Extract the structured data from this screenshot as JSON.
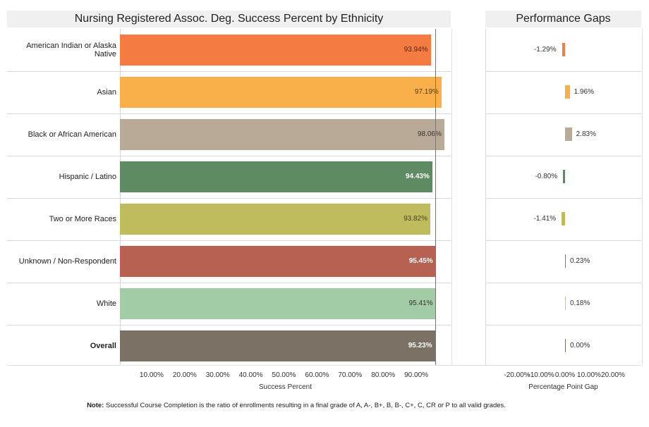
{
  "main_title": "Nursing Registered Assoc. Deg. Success Percent by Ethnicity",
  "gap_title": "Performance Gaps",
  "x_axis_title": "Success Percent",
  "gap_axis_title": "Percentage Point Gap",
  "note_label": "Note:",
  "note_text": "Successful Course Completion is the ratio of enrollments resulting in a final grade of A, A-, B+, B, B-, C+, C, CR or P to all valid grades.",
  "chart_data": [
    {
      "type": "bar",
      "orientation": "horizontal",
      "title": "Nursing Registered Assoc. Deg. Success Percent by Ethnicity",
      "xlabel": "Success Percent",
      "xlim": [
        0,
        100
      ],
      "x_tick_labels": [
        "10.00%",
        "20.00%",
        "30.00%",
        "40.00%",
        "50.00%",
        "60.00%",
        "70.00%",
        "80.00%",
        "90.00%"
      ],
      "categories": [
        "American Indian or Alaska Native",
        "Asian",
        "Black or African American",
        "Hispanic / Latino",
        "Two or More Races",
        "Unknown / Non-Respondent",
        "White",
        "Overall"
      ],
      "values": [
        93.94,
        97.19,
        98.06,
        94.43,
        93.82,
        95.45,
        95.41,
        95.23
      ],
      "value_labels": [
        "93.94%",
        "97.19%",
        "98.06%",
        "94.43%",
        "93.82%",
        "95.45%",
        "95.41%",
        "95.23%"
      ],
      "colors": [
        "#f47c42",
        "#f9b04b",
        "#b8aa96",
        "#5e8b62",
        "#bfbc5e",
        "#b66151",
        "#a1cca6",
        "#7b7164"
      ],
      "label_colors": [
        "#5a2410",
        "#5a3a08",
        "#333333",
        "#ffffff",
        "#444422",
        "#ffffff",
        "#333333",
        "#ffffff"
      ],
      "reference_line": 95.23
    },
    {
      "type": "bar",
      "orientation": "horizontal",
      "title": "Performance Gaps",
      "xlabel": "Percentage Point Gap",
      "xlim": [
        -25,
        25
      ],
      "x_tick_labels": [
        "-20.00%",
        "-10.00%",
        "0.00%",
        "10.00%",
        "20.00%"
      ],
      "x_tick_values": [
        -20,
        -10,
        0,
        10,
        20
      ],
      "categories": [
        "American Indian or Alaska Native",
        "Asian",
        "Black or African American",
        "Hispanic / Latino",
        "Two or More Races",
        "Unknown / Non-Respondent",
        "White",
        "Overall"
      ],
      "values": [
        -1.29,
        1.96,
        2.83,
        -0.8,
        -1.41,
        0.23,
        0.18,
        0.0
      ],
      "value_labels": [
        "-1.29%",
        "1.96%",
        "2.83%",
        "-0.80%",
        "-1.41%",
        "0.23%",
        "0.18%",
        "0.00%"
      ]
    }
  ]
}
